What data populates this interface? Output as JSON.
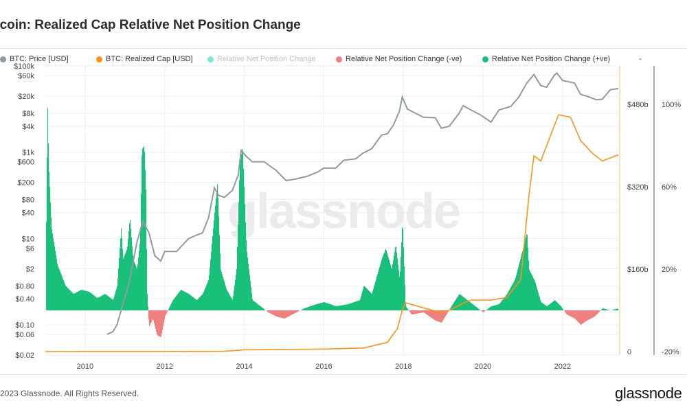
{
  "header": {
    "title": "itcoin: Realized Cap Relative Net Position Change"
  },
  "legend": {
    "items": [
      {
        "label": "BTC: Price [USD]",
        "color": "#8f9aa3",
        "muted": false
      },
      {
        "label": "BTC: Realized Cap [USD]",
        "color": "#f7931a",
        "muted": false
      },
      {
        "label": "Relative Net Position Change",
        "color": "#7fe6d8",
        "muted": true
      },
      {
        "label": "Relative Net Position Change (-ve)",
        "color": "#f08080",
        "muted": false
      },
      {
        "label": "Relative Net Position Change (+ve)",
        "color": "#18c07a",
        "muted": false
      }
    ],
    "trailing": "-"
  },
  "watermark": "glassnode",
  "footer": {
    "copyright": "2023 Glassnode. All Rights Reserved.",
    "logo": "glassnode"
  },
  "chart_data": {
    "type": "line",
    "x_range": [
      2009.0,
      2023.4
    ],
    "x_ticks": [
      "2010",
      "2012",
      "2014",
      "2016",
      "2018",
      "2020",
      "2022"
    ],
    "grid": true,
    "y_left": {
      "scale": "log",
      "label": "",
      "range": [
        0.02,
        100000
      ],
      "ticks": [
        {
          "label": "$100k",
          "value": 100000
        },
        {
          "label": "$60k",
          "value": 60000
        },
        {
          "label": "$20k",
          "value": 20000
        },
        {
          "label": "$8k",
          "value": 8000
        },
        {
          "label": "$4k",
          "value": 4000
        },
        {
          "label": "$1k",
          "value": 1000
        },
        {
          "label": "$600",
          "value": 600
        },
        {
          "label": "$200",
          "value": 200
        },
        {
          "label": "$80",
          "value": 80
        },
        {
          "label": "$40",
          "value": 40
        },
        {
          "label": "$10",
          "value": 10
        },
        {
          "label": "$6",
          "value": 6
        },
        {
          "label": "$2",
          "value": 2
        },
        {
          "label": "$0.80",
          "value": 0.8
        },
        {
          "label": "$0.40",
          "value": 0.4
        },
        {
          "label": "$0.10",
          "value": 0.1
        },
        {
          "label": "$0.06",
          "value": 0.06
        },
        {
          "label": "$0.02",
          "value": 0.02
        }
      ]
    },
    "y_right_cap": {
      "scale": "linear",
      "range": [
        0,
        480
      ],
      "ticks": [
        {
          "label": "$480b",
          "value": 480
        },
        {
          "label": "$320b",
          "value": 320
        },
        {
          "label": "$160b",
          "value": 160
        },
        {
          "label": "0",
          "value": 0
        }
      ]
    },
    "y_right_pct": {
      "scale": "linear",
      "range": [
        -20,
        100
      ],
      "ticks": [
        {
          "label": "100%",
          "value": 100
        },
        {
          "label": "60%",
          "value": 60
        },
        {
          "label": "20%",
          "value": 20
        },
        {
          "label": "-20%",
          "value": -20
        }
      ]
    },
    "series": [
      {
        "name": "BTC: Price [USD]",
        "axis": "left",
        "color": "#8f9aa3",
        "points": [
          [
            2010.55,
            0.06
          ],
          [
            2010.7,
            0.07
          ],
          [
            2010.8,
            0.1
          ],
          [
            2010.95,
            0.3
          ],
          [
            2011.1,
            0.9
          ],
          [
            2011.3,
            8
          ],
          [
            2011.45,
            25
          ],
          [
            2011.6,
            14
          ],
          [
            2011.75,
            4
          ],
          [
            2011.9,
            3
          ],
          [
            2012.0,
            5
          ],
          [
            2012.3,
            5
          ],
          [
            2012.6,
            10
          ],
          [
            2012.8,
            12
          ],
          [
            2012.95,
            13.5
          ],
          [
            2013.1,
            30
          ],
          [
            2013.25,
            150
          ],
          [
            2013.35,
            100
          ],
          [
            2013.5,
            90
          ],
          [
            2013.7,
            130
          ],
          [
            2013.85,
            300
          ],
          [
            2013.92,
            1100
          ],
          [
            2014.05,
            800
          ],
          [
            2014.2,
            600
          ],
          [
            2014.5,
            600
          ],
          [
            2014.8,
            380
          ],
          [
            2015.05,
            220
          ],
          [
            2015.3,
            240
          ],
          [
            2015.6,
            280
          ],
          [
            2015.85,
            350
          ],
          [
            2016.0,
            430
          ],
          [
            2016.3,
            430
          ],
          [
            2016.5,
            650
          ],
          [
            2016.8,
            700
          ],
          [
            2016.98,
            950
          ],
          [
            2017.2,
            1200
          ],
          [
            2017.45,
            2500
          ],
          [
            2017.6,
            2700
          ],
          [
            2017.75,
            4300
          ],
          [
            2017.9,
            9000
          ],
          [
            2017.97,
            19000
          ],
          [
            2018.1,
            10000
          ],
          [
            2018.3,
            8000
          ],
          [
            2018.5,
            6500
          ],
          [
            2018.8,
            6300
          ],
          [
            2018.95,
            3600
          ],
          [
            2019.15,
            4000
          ],
          [
            2019.4,
            8000
          ],
          [
            2019.5,
            12000
          ],
          [
            2019.7,
            9500
          ],
          [
            2019.95,
            7200
          ],
          [
            2020.2,
            5000
          ],
          [
            2020.4,
            9500
          ],
          [
            2020.7,
            11500
          ],
          [
            2020.9,
            19000
          ],
          [
            2021.1,
            40000
          ],
          [
            2021.28,
            63000
          ],
          [
            2021.45,
            35000
          ],
          [
            2021.6,
            32000
          ],
          [
            2021.8,
            62000
          ],
          [
            2021.86,
            68000
          ],
          [
            2022.0,
            46000
          ],
          [
            2022.3,
            40000
          ],
          [
            2022.45,
            22000
          ],
          [
            2022.6,
            20000
          ],
          [
            2022.85,
            16500
          ],
          [
            2023.0,
            17000
          ],
          [
            2023.2,
            28000
          ],
          [
            2023.4,
            30000
          ]
        ]
      },
      {
        "name": "BTC: Realized Cap [USD]",
        "axis": "right_cap",
        "color": "#f7931a",
        "points": [
          [
            2009.0,
            0
          ],
          [
            2012.0,
            0.1
          ],
          [
            2013.5,
            0.5
          ],
          [
            2014.0,
            3.5
          ],
          [
            2016.0,
            5
          ],
          [
            2017.0,
            7
          ],
          [
            2017.6,
            18
          ],
          [
            2017.85,
            45
          ],
          [
            2017.97,
            80
          ],
          [
            2018.05,
            95
          ],
          [
            2018.5,
            85
          ],
          [
            2019.0,
            75
          ],
          [
            2019.4,
            90
          ],
          [
            2019.7,
            100
          ],
          [
            2020.2,
            100
          ],
          [
            2020.6,
            105
          ],
          [
            2020.95,
            140
          ],
          [
            2021.15,
            300
          ],
          [
            2021.28,
            380
          ],
          [
            2021.45,
            370
          ],
          [
            2021.7,
            420
          ],
          [
            2021.9,
            460
          ],
          [
            2022.2,
            455
          ],
          [
            2022.45,
            410
          ],
          [
            2022.75,
            385
          ],
          [
            2023.0,
            370
          ],
          [
            2023.4,
            382
          ]
        ]
      },
      {
        "name": "Relative Net Position Change",
        "axis": "right_pct",
        "color_pos": "#18c07a",
        "color_neg": "#f08080",
        "points": [
          [
            2009.0,
            0
          ],
          [
            2009.02,
            50
          ],
          [
            2009.05,
            100
          ],
          [
            2009.08,
            70
          ],
          [
            2009.15,
            40
          ],
          [
            2009.3,
            22
          ],
          [
            2009.5,
            12
          ],
          [
            2009.7,
            8
          ],
          [
            2009.9,
            10
          ],
          [
            2010.1,
            9
          ],
          [
            2010.3,
            6
          ],
          [
            2010.5,
            8
          ],
          [
            2010.7,
            5
          ],
          [
            2010.8,
            12
          ],
          [
            2010.9,
            40
          ],
          [
            2010.95,
            25
          ],
          [
            2011.05,
            30
          ],
          [
            2011.12,
            45
          ],
          [
            2011.2,
            25
          ],
          [
            2011.3,
            20
          ],
          [
            2011.38,
            35
          ],
          [
            2011.42,
            78
          ],
          [
            2011.48,
            80
          ],
          [
            2011.52,
            60
          ],
          [
            2011.55,
            10
          ],
          [
            2011.6,
            -8
          ],
          [
            2011.7,
            -4
          ],
          [
            2011.8,
            -12
          ],
          [
            2011.9,
            -13
          ],
          [
            2012.0,
            -3
          ],
          [
            2012.2,
            5
          ],
          [
            2012.4,
            10
          ],
          [
            2012.6,
            8
          ],
          [
            2012.8,
            5
          ],
          [
            2012.95,
            8
          ],
          [
            2013.1,
            15
          ],
          [
            2013.25,
            48
          ],
          [
            2013.32,
            62
          ],
          [
            2013.4,
            20
          ],
          [
            2013.55,
            10
          ],
          [
            2013.7,
            5
          ],
          [
            2013.8,
            20
          ],
          [
            2013.88,
            70
          ],
          [
            2013.95,
            80
          ],
          [
            2014.05,
            30
          ],
          [
            2014.2,
            5
          ],
          [
            2014.4,
            2
          ],
          [
            2014.6,
            -1
          ],
          [
            2014.8,
            -3
          ],
          [
            2015.0,
            -4
          ],
          [
            2015.2,
            -2
          ],
          [
            2015.5,
            1
          ],
          [
            2015.8,
            3
          ],
          [
            2016.0,
            4
          ],
          [
            2016.3,
            2
          ],
          [
            2016.6,
            3
          ],
          [
            2016.9,
            5
          ],
          [
            2017.0,
            12
          ],
          [
            2017.2,
            8
          ],
          [
            2017.45,
            25
          ],
          [
            2017.55,
            30
          ],
          [
            2017.7,
            20
          ],
          [
            2017.8,
            32
          ],
          [
            2017.9,
            15
          ],
          [
            2017.97,
            44
          ],
          [
            2018.05,
            2
          ],
          [
            2018.2,
            -2
          ],
          [
            2018.5,
            -1
          ],
          [
            2018.8,
            -5
          ],
          [
            2018.95,
            -6
          ],
          [
            2019.2,
            2
          ],
          [
            2019.4,
            8
          ],
          [
            2019.6,
            5
          ],
          [
            2019.8,
            2
          ],
          [
            2020.0,
            -1
          ],
          [
            2020.2,
            2
          ],
          [
            2020.4,
            3
          ],
          [
            2020.6,
            8
          ],
          [
            2020.8,
            15
          ],
          [
            2021.0,
            30
          ],
          [
            2021.1,
            38
          ],
          [
            2021.15,
            20
          ],
          [
            2021.3,
            14
          ],
          [
            2021.45,
            4
          ],
          [
            2021.6,
            2
          ],
          [
            2021.8,
            5
          ],
          [
            2021.95,
            2
          ],
          [
            2022.1,
            -2
          ],
          [
            2022.3,
            -4
          ],
          [
            2022.45,
            -7
          ],
          [
            2022.6,
            -5
          ],
          [
            2022.8,
            -3
          ],
          [
            2023.0,
            1
          ],
          [
            2023.2,
            0
          ],
          [
            2023.4,
            1
          ]
        ]
      }
    ]
  }
}
